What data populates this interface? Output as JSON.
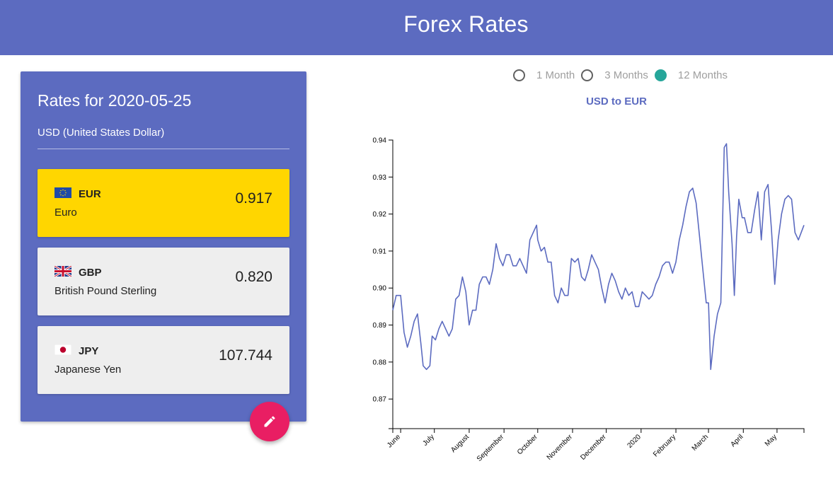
{
  "header": {
    "title": "Forex Rates"
  },
  "panel": {
    "title": "Rates for 2020-05-25",
    "base": "USD (United States Dollar)",
    "rates": [
      {
        "code": "EUR",
        "name": "Euro",
        "value": "0.917",
        "selected": true,
        "flag_icon": "eu-flag-icon"
      },
      {
        "code": "GBP",
        "name": "British Pound Sterling",
        "value": "0.820",
        "selected": false,
        "flag_icon": "uk-flag-icon"
      },
      {
        "code": "JPY",
        "name": "Japanese Yen",
        "value": "107.744",
        "selected": false,
        "flag_icon": "japan-flag-icon"
      }
    ],
    "fab_icon": "pencil-icon"
  },
  "range": {
    "options": [
      "1 Month",
      "3 Months",
      "12 Months"
    ],
    "selected": "12 Months"
  },
  "colors": {
    "primary": "#5c6bc0",
    "selected_card": "#ffd600",
    "fab": "#e91e63",
    "radio_on": "#26a69a"
  },
  "chart_data": {
    "type": "line",
    "title": "USD to EUR",
    "xlabel": "",
    "ylabel": "",
    "ylim": [
      0.862,
      0.94
    ],
    "yticks": [
      "0.87",
      "0.88",
      "0.89",
      "0.90",
      "0.91",
      "0.92",
      "0.93",
      "0.94"
    ],
    "x_tick_labels": [
      "June",
      "July",
      "August",
      "September",
      "October",
      "November",
      "December",
      "2020",
      "February",
      "March",
      "April",
      "May"
    ],
    "x_tick_dates": [
      "2019-06-01",
      "2019-07-01",
      "2019-08-01",
      "2019-09-01",
      "2019-10-01",
      "2019-11-01",
      "2019-12-01",
      "2020-01-01",
      "2020-02-01",
      "2020-03-01",
      "2020-04-01",
      "2020-05-01"
    ],
    "x_range": [
      "2019-05-25",
      "2020-05-25"
    ],
    "grid": false,
    "series": [
      {
        "x": [
          "2019-05-25",
          "2019-05-28",
          "2019-06-01",
          "2019-06-04",
          "2019-06-07",
          "2019-06-10",
          "2019-06-13",
          "2019-06-16",
          "2019-06-19",
          "2019-06-21",
          "2019-06-24",
          "2019-06-27",
          "2019-06-29",
          "2019-07-02",
          "2019-07-05",
          "2019-07-08",
          "2019-07-11",
          "2019-07-14",
          "2019-07-17",
          "2019-07-20",
          "2019-07-23",
          "2019-07-26",
          "2019-07-29",
          "2019-08-01",
          "2019-08-04",
          "2019-08-07",
          "2019-08-10",
          "2019-08-13",
          "2019-08-16",
          "2019-08-19",
          "2019-08-22",
          "2019-08-25",
          "2019-08-28",
          "2019-08-31",
          "2019-09-03",
          "2019-09-06",
          "2019-09-09",
          "2019-09-12",
          "2019-09-15",
          "2019-09-18",
          "2019-09-21",
          "2019-09-24",
          "2019-09-27",
          "2019-09-30",
          "2019-10-01",
          "2019-10-04",
          "2019-10-07",
          "2019-10-10",
          "2019-10-13",
          "2019-10-16",
          "2019-10-19",
          "2019-10-22",
          "2019-10-25",
          "2019-10-28",
          "2019-10-31",
          "2019-11-03",
          "2019-11-06",
          "2019-11-09",
          "2019-11-12",
          "2019-11-15",
          "2019-11-18",
          "2019-11-21",
          "2019-11-24",
          "2019-11-27",
          "2019-11-30",
          "2019-12-03",
          "2019-12-06",
          "2019-12-09",
          "2019-12-12",
          "2019-12-15",
          "2019-12-18",
          "2019-12-21",
          "2019-12-24",
          "2019-12-27",
          "2019-12-30",
          "2020-01-02",
          "2020-01-05",
          "2020-01-08",
          "2020-01-11",
          "2020-01-14",
          "2020-01-17",
          "2020-01-20",
          "2020-01-23",
          "2020-01-26",
          "2020-01-29",
          "2020-02-01",
          "2020-02-04",
          "2020-02-07",
          "2020-02-10",
          "2020-02-13",
          "2020-02-16",
          "2020-02-19",
          "2020-02-22",
          "2020-02-25",
          "2020-02-28",
          "2020-03-01",
          "2020-03-03",
          "2020-03-06",
          "2020-03-09",
          "2020-03-12",
          "2020-03-15",
          "2020-03-17",
          "2020-03-19",
          "2020-03-22",
          "2020-03-24",
          "2020-03-26",
          "2020-03-28",
          "2020-03-31",
          "2020-04-02",
          "2020-04-05",
          "2020-04-08",
          "2020-04-11",
          "2020-04-14",
          "2020-04-17",
          "2020-04-20",
          "2020-04-23",
          "2020-04-26",
          "2020-04-29",
          "2020-05-02",
          "2020-05-05",
          "2020-05-08",
          "2020-05-11",
          "2020-05-14",
          "2020-05-17",
          "2020-05-20",
          "2020-05-25"
        ],
        "values": [
          0.894,
          0.898,
          0.898,
          0.888,
          0.884,
          0.887,
          0.891,
          0.893,
          0.885,
          0.879,
          0.878,
          0.879,
          0.887,
          0.886,
          0.889,
          0.891,
          0.889,
          0.887,
          0.889,
          0.897,
          0.898,
          0.903,
          0.899,
          0.89,
          0.894,
          0.894,
          0.901,
          0.903,
          0.903,
          0.901,
          0.905,
          0.912,
          0.908,
          0.906,
          0.909,
          0.909,
          0.906,
          0.906,
          0.908,
          0.906,
          0.904,
          0.913,
          0.915,
          0.917,
          0.913,
          0.91,
          0.911,
          0.907,
          0.907,
          0.898,
          0.896,
          0.9,
          0.898,
          0.898,
          0.908,
          0.907,
          0.908,
          0.903,
          0.902,
          0.905,
          0.909,
          0.907,
          0.905,
          0.9,
          0.896,
          0.901,
          0.904,
          0.902,
          0.899,
          0.897,
          0.9,
          0.898,
          0.899,
          0.895,
          0.895,
          0.899,
          0.898,
          0.897,
          0.898,
          0.901,
          0.903,
          0.906,
          0.907,
          0.907,
          0.904,
          0.907,
          0.913,
          0.917,
          0.922,
          0.926,
          0.927,
          0.923,
          0.914,
          0.905,
          0.896,
          0.896,
          0.878,
          0.887,
          0.893,
          0.896,
          0.938,
          0.939,
          0.926,
          0.912,
          0.898,
          0.914,
          0.924,
          0.919,
          0.919,
          0.915,
          0.915,
          0.921,
          0.926,
          0.913,
          0.926,
          0.928,
          0.916,
          0.901,
          0.913,
          0.92,
          0.924,
          0.925,
          0.924,
          0.915,
          0.913,
          0.917
        ]
      }
    ]
  }
}
